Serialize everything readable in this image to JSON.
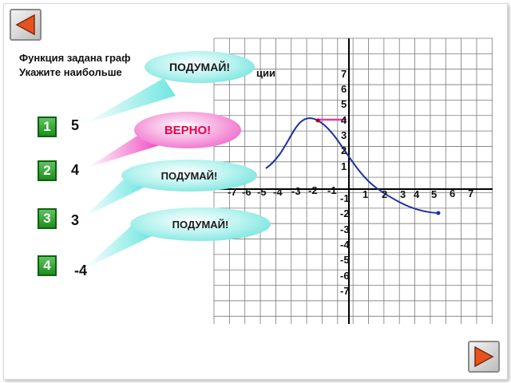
{
  "question": {
    "line1": "Функция задана граф",
    "line2": "Укажите наибольше"
  },
  "question_hidden_tail": "ции",
  "answers": [
    {
      "number": "1",
      "value": "5"
    },
    {
      "number": "2",
      "value": "4"
    },
    {
      "number": "3",
      "value": "3"
    },
    {
      "number": "4",
      "value": "-4"
    }
  ],
  "bubbles": {
    "b1": "ПОДУМАЙ!",
    "b2": "ВЕРНО!",
    "b3": "ПОДУМАЙ!",
    "b4": "ПОДУМАЙ!"
  },
  "axis": {
    "x_neg": [
      "-7",
      "-6",
      "-5",
      "-4",
      "-3",
      "-2",
      "-1"
    ],
    "x_pos": [
      "1",
      "2",
      "3",
      "4",
      "5",
      "6",
      "7"
    ],
    "y_pos": [
      "7",
      "6",
      "5",
      "4",
      "3",
      "2",
      "1"
    ],
    "y_neg": [
      "-1",
      "-2",
      "-3",
      "-4",
      "-5",
      "-6",
      "-7"
    ]
  },
  "colors": {
    "curve": "#1f2fa0",
    "max_marker": "#e23aa8",
    "correct_bubble": "#f04cc0",
    "hint_bubble": "#6fe6e0",
    "answer_box": "#2a9d2a",
    "nav_arrow": "#e8521e"
  },
  "icons": {
    "prev": "arrow-left-icon",
    "next": "arrow-right-icon"
  }
}
